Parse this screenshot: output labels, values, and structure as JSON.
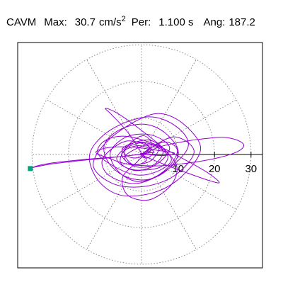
{
  "header": {
    "station": "CAVM",
    "max_label": "Max:",
    "max_value": "30.7",
    "max_unit": "cm/s",
    "max_unit_exp": "2",
    "period_label": "Per:",
    "period_value": "1.100 s",
    "angle_label": "Ang:",
    "angle_value": "187.2"
  },
  "colors": {
    "trace": "#9400d3",
    "marker": "#00a37a",
    "grid": "#8a8a8a",
    "axis": "#000000"
  },
  "chart_data": {
    "type": "scatter",
    "subtype": "polar-particle-motion",
    "title": "",
    "xlabel": "",
    "ylabel": "",
    "radial_range": [
      0,
      30.7
    ],
    "radial_ticks": [
      10,
      20,
      30
    ],
    "radial_tick_labels": [
      "10",
      "20",
      "30"
    ],
    "grid": true,
    "grid_rings": [
      10,
      20,
      30
    ],
    "grid_spokes_deg": [
      0,
      30,
      60,
      90,
      120,
      150,
      180,
      210,
      240,
      270,
      300,
      330
    ],
    "peak": {
      "amplitude": 30.7,
      "angle_deg": 187.2
    },
    "series": [
      {
        "x": [
          0.0,
          3.5,
          7.2,
          4.8,
          -2.6,
          -6.8,
          -3.1,
          2.4,
          5.9,
          3.2,
          -1.8,
          -4.6,
          0.9,
          4.7,
          2.2,
          -2.9,
          -5.4,
          -1.2,
          3.1,
          1.8,
          0.0,
          6.1,
          9.8,
          7.3,
          2.0,
          -4.2,
          -8.9,
          -10.2,
          -6.1,
          0.7,
          6.6,
          10.1,
          6.2,
          -0.8,
          -6.4,
          -8.5,
          -3.9,
          2.8,
          7.7,
          4.1,
          -1.5,
          -5.7,
          -4.3,
          0.4,
          2.6,
          0.0,
          8.6,
          14.4,
          9.3,
          1.1,
          -7.5,
          -13.2,
          -9.7,
          -2.0,
          5.1,
          11.8,
          16.2,
          11.0,
          3.4,
          -5.8,
          -12.1,
          -14.1,
          -8.2,
          1.9,
          9.6,
          12.8,
          7.0,
          -1.2,
          -8.8,
          -10.6,
          -4.4,
          2.1,
          0.0,
          5.0,
          12.0,
          18.0,
          22.5,
          26.0,
          28.0,
          26.5,
          21.0,
          13.0,
          5.0,
          -3.5,
          -9.0,
          -12.5,
          -9.0,
          -2.0,
          4.5,
          9.0,
          6.0,
          0.0,
          -6.0,
          -14.0,
          -20.0,
          -25.0,
          -28.5,
          -30.46,
          -29.0,
          -24.0,
          -17.0,
          -10.0,
          -4.0,
          0.5,
          3.5,
          1.0,
          0.0,
          6.2,
          13.5,
          19.1,
          21.3,
          18.0,
          11.1,
          3.4,
          -4.5,
          -10.0,
          -12.0,
          -7.8,
          -1.4,
          4.4,
          8.2,
          5.1,
          -0.8,
          -5.3,
          -3.0,
          0.0,
          -3.8,
          -8.1,
          -9.9,
          -6.8,
          -0.4,
          6.3,
          9.7,
          7.9,
          2.1,
          -3.7,
          -5.2,
          -1.0,
          2.7,
          0.8,
          -2.4,
          -4.7,
          -2.1,
          1.3,
          0.0
        ],
        "y": [
          0.0,
          2.1,
          -0.4,
          -3.6,
          -4.1,
          -1.2,
          2.7,
          3.9,
          0.8,
          -2.9,
          -3.3,
          -0.6,
          2.5,
          1.7,
          -1.9,
          -2.6,
          0.3,
          2.4,
          1.1,
          -0.9,
          0.0,
          3.4,
          1.2,
          -3.5,
          -6.8,
          -6.1,
          -2.4,
          2.6,
          6.7,
          8.3,
          5.8,
          0.4,
          -4.9,
          -7.4,
          -4.6,
          0.7,
          4.9,
          5.3,
          1.9,
          -2.7,
          -4.4,
          -2.3,
          1.6,
          3.2,
          1.1,
          0.0,
          4.8,
          0.9,
          -5.6,
          -8.7,
          -8.1,
          -3.2,
          3.3,
          8.9,
          11.2,
          8.1,
          1.5,
          -6.0,
          -10.4,
          -11.1,
          -6.8,
          0.4,
          6.9,
          10.3,
          7.6,
          2.2,
          -4.2,
          -7.9,
          -5.8,
          -1.1,
          3.6,
          2.1,
          0.0,
          2.1,
          3.6,
          4.4,
          4.7,
          4.0,
          2.6,
          0.9,
          -0.9,
          -2.3,
          -3.1,
          -2.7,
          -1.0,
          0.6,
          1.9,
          2.0,
          1.1,
          0.4,
          -0.3,
          0.0,
          -0.6,
          -1.2,
          -1.8,
          -2.4,
          -3.1,
          -3.86,
          -3.4,
          -2.5,
          -1.7,
          -1.0,
          -0.4,
          0.2,
          0.6,
          0.3,
          0.0,
          -2.7,
          -5.4,
          -7.3,
          -7.6,
          -4.9,
          -1.0,
          2.9,
          5.0,
          3.8,
          0.4,
          -3.1,
          -5.6,
          -4.6,
          -1.5,
          1.9,
          3.4,
          1.5,
          -0.8,
          0.0,
          6.1,
          10.8,
          12.6,
          11.4,
          6.9,
          1.4,
          -3.5,
          -8.6,
          -12.4,
          -11.2,
          -6.3,
          -1.8,
          2.4,
          5.1,
          3.7,
          0.3,
          -2.9,
          -1.6,
          0.0
        ]
      }
    ]
  }
}
